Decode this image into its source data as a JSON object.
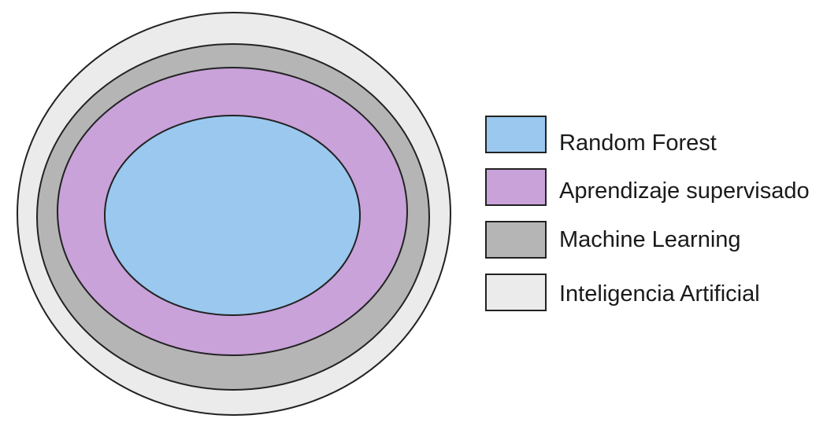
{
  "layers": [
    {
      "id": "ai",
      "label": "Inteligencia Artificial",
      "color": "#ebebeb"
    },
    {
      "id": "ml",
      "label": "Machine Learning",
      "color": "#b5b5b5"
    },
    {
      "id": "supervised",
      "label": "Aprendizaje supervisado",
      "color": "#c8a2d9"
    },
    {
      "id": "rf",
      "label": "Random Forest",
      "color": "#9ac8ef"
    }
  ],
  "legend": {
    "placement": "right",
    "order": [
      "rf",
      "supervised",
      "ml",
      "ai"
    ]
  }
}
